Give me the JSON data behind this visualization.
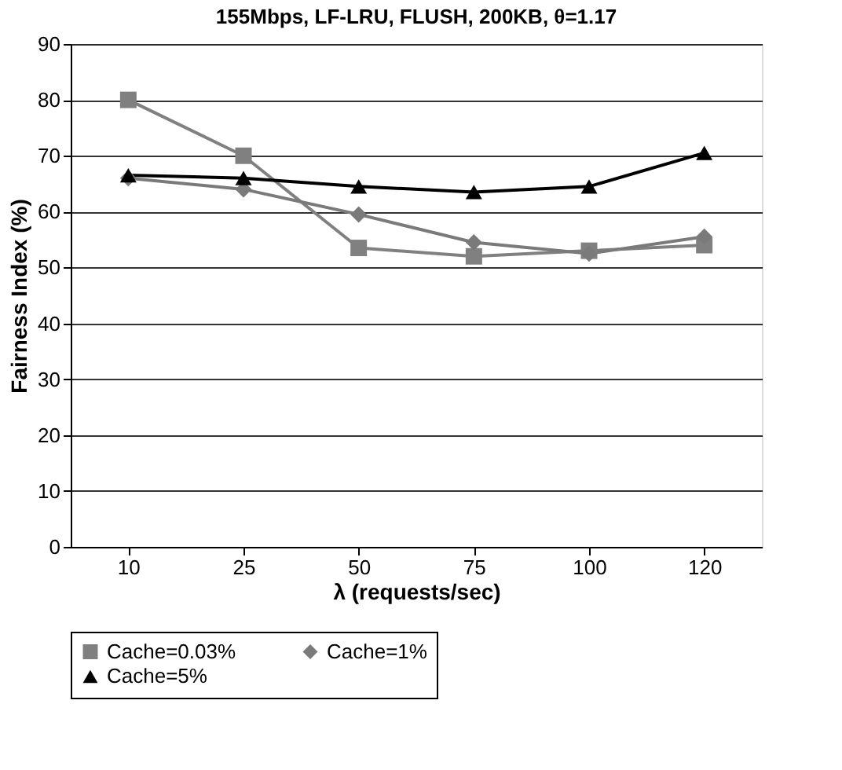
{
  "chart_data": {
    "type": "line",
    "title": "155Mbps, LF-LRU, FLUSH, 200KB, θ=1.17",
    "xlabel": "λ (requests/sec)",
    "ylabel": "Fairness Index (%)",
    "categories": [
      "10",
      "25",
      "50",
      "75",
      "100",
      "120"
    ],
    "series": [
      {
        "name": "Cache=0.03%",
        "color": "#808080",
        "marker": "square",
        "values": [
          80,
          70,
          53.5,
          52,
          53,
          54
        ]
      },
      {
        "name": "Cache=1%",
        "color": "#7a7a7a",
        "marker": "diamond",
        "values": [
          66,
          64,
          59.5,
          54.5,
          52.5,
          55.5
        ]
      },
      {
        "name": "Cache=5%",
        "color": "#000000",
        "marker": "triangle",
        "values": [
          66.5,
          66,
          64.5,
          63.5,
          64.5,
          70.5
        ]
      }
    ],
    "ylim": [
      0,
      90
    ],
    "yticks": [
      0,
      10,
      20,
      30,
      40,
      50,
      60,
      70,
      80,
      90
    ],
    "grid": "y",
    "legend": "bottom"
  }
}
